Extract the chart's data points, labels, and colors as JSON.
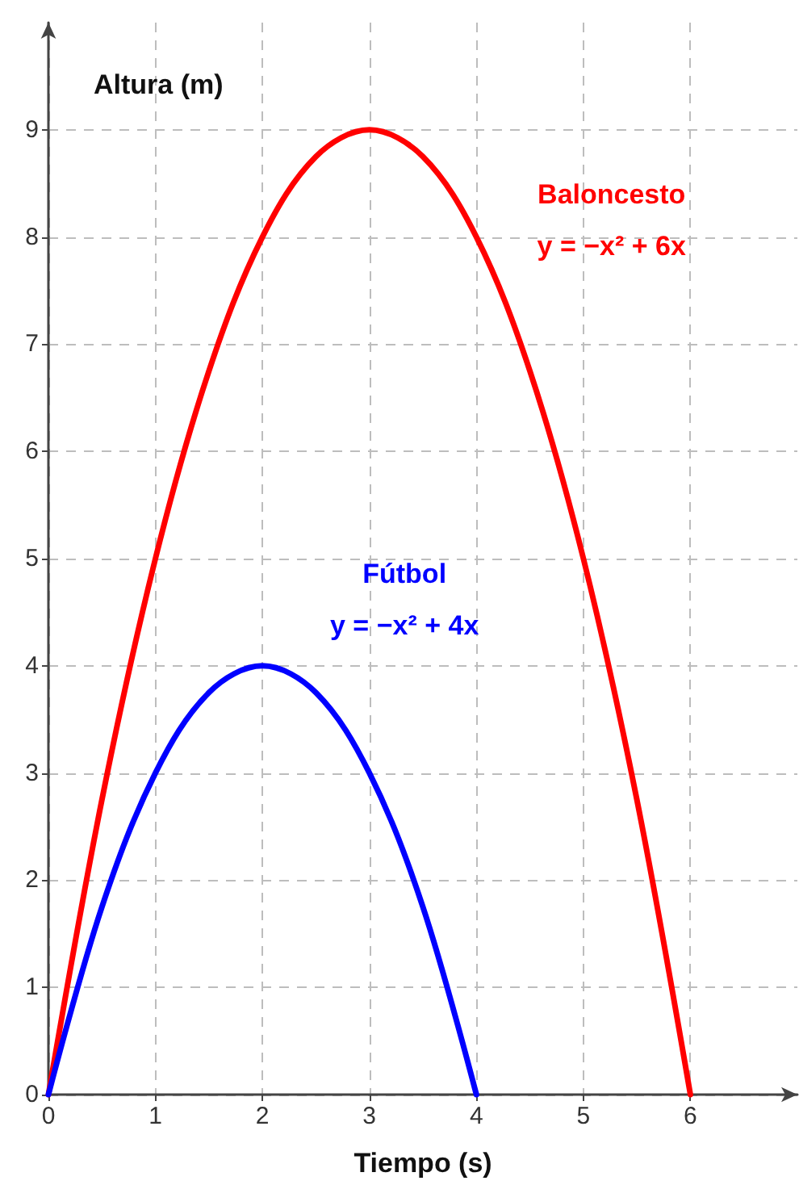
{
  "chart_data": {
    "type": "line",
    "xlabel": "Tiempo (s)",
    "ylabel": "Altura (m)",
    "xlim": [
      0,
      7
    ],
    "xticks": [
      0,
      1,
      2,
      3,
      4,
      5,
      6
    ],
    "ylim": [
      0,
      10
    ],
    "yticks": [
      0,
      1,
      2,
      3,
      4,
      5,
      6,
      7,
      8,
      9
    ],
    "grid": true,
    "legend": false,
    "marker": "none",
    "line_style": "solid",
    "series": [
      {
        "name": "Baloncesto",
        "color": "#ff0000",
        "x": [
          0,
          0.5,
          1,
          1.5,
          2,
          2.5,
          3,
          3.5,
          4,
          4.5,
          5,
          5.5,
          6
        ],
        "values": [
          0,
          2.75,
          5,
          6.75,
          8,
          8.75,
          9,
          8.75,
          8,
          6.75,
          5,
          2.75,
          0
        ]
      },
      {
        "name": "Fútbol",
        "color": "#0000ff",
        "x": [
          0,
          0.5,
          1,
          1.5,
          2,
          2.5,
          3,
          3.5,
          4
        ],
        "values": [
          0,
          1.75,
          3,
          3.75,
          4,
          3.75,
          3,
          1.75,
          0
        ]
      }
    ],
    "annotations": [
      "y = −x² + 6x",
      "y = −x² + 4x"
    ]
  }
}
